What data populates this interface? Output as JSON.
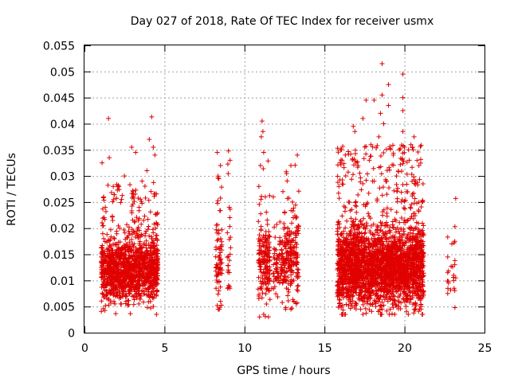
{
  "chart_data": {
    "type": "scatter",
    "title": "Day 027 of 2018, Rate Of TEC Index for receiver usmx",
    "xlabel": "GPS time / hours",
    "ylabel": "ROTI / TECUs",
    "xlim": [
      0,
      25
    ],
    "ylim": [
      0,
      0.055
    ],
    "xticks": [
      "0",
      "5",
      "10",
      "15",
      "20",
      "25"
    ],
    "yticks": [
      "0",
      "0.005",
      "0.01",
      "0.015",
      "0.02",
      "0.025",
      "0.03",
      "0.035",
      "0.04",
      "0.045",
      "0.05",
      "0.055"
    ],
    "grid": true,
    "marker": "+",
    "color": "#e00000",
    "series": [
      {
        "name": "ROTI",
        "points": [
          [
            1.5,
            0.041
          ],
          [
            1.1,
            0.0325
          ],
          [
            1.55,
            0.0335
          ],
          [
            2.95,
            0.0355
          ],
          [
            3.2,
            0.0345
          ],
          [
            4.2,
            0.0413
          ],
          [
            4.05,
            0.037
          ],
          [
            4.3,
            0.0355
          ],
          [
            2.5,
            0.03
          ],
          [
            1.8,
            0.028
          ],
          [
            1.2,
            0.026
          ],
          [
            1.3,
            0.024
          ],
          [
            3.6,
            0.029
          ],
          [
            4.4,
            0.034
          ],
          [
            3.9,
            0.031
          ],
          [
            8.3,
            0.0345
          ],
          [
            9.0,
            0.0348
          ],
          [
            8.5,
            0.032
          ],
          [
            9.1,
            0.033
          ],
          [
            8.4,
            0.0295
          ],
          [
            8.4,
            0.019
          ],
          [
            8.6,
            0.012
          ],
          [
            9.05,
            0.024
          ],
          [
            9.1,
            0.015
          ],
          [
            9.0,
            0.009
          ],
          [
            8.3,
            0.0052
          ],
          [
            8.5,
            0.006
          ],
          [
            8.35,
            0.0045
          ],
          [
            9.05,
            0.0115
          ],
          [
            11.1,
            0.0405
          ],
          [
            11.15,
            0.0385
          ],
          [
            11.05,
            0.0375
          ],
          [
            11.2,
            0.0345
          ],
          [
            11.0,
            0.032
          ],
          [
            10.9,
            0.028
          ],
          [
            11.3,
            0.026
          ],
          [
            11.5,
            0.003
          ],
          [
            11.2,
            0.0035
          ],
          [
            11.8,
            0.026
          ],
          [
            12.4,
            0.027
          ],
          [
            12.9,
            0.032
          ],
          [
            13.3,
            0.034
          ],
          [
            13.0,
            0.025
          ],
          [
            12.7,
            0.02
          ],
          [
            12.2,
            0.0175
          ],
          [
            13.2,
            0.013
          ],
          [
            12.9,
            0.0045
          ],
          [
            13.1,
            0.006
          ],
          [
            11.6,
            0.012
          ],
          [
            12.5,
            0.01
          ],
          [
            12.2,
            0.0095
          ],
          [
            11.7,
            0.0085
          ],
          [
            10.9,
            0.007
          ],
          [
            13.35,
            0.009
          ],
          [
            16.8,
            0.0395
          ],
          [
            16.9,
            0.0385
          ],
          [
            17.6,
            0.0445
          ],
          [
            18.1,
            0.0445
          ],
          [
            18.6,
            0.0455
          ],
          [
            18.6,
            0.0515
          ],
          [
            19.0,
            0.0475
          ],
          [
            19.0,
            0.0435
          ],
          [
            19.9,
            0.0495
          ],
          [
            19.9,
            0.045
          ],
          [
            19.9,
            0.0425
          ],
          [
            19.9,
            0.0385
          ],
          [
            17.4,
            0.041
          ],
          [
            18.5,
            0.042
          ],
          [
            18.7,
            0.04
          ],
          [
            18.4,
            0.0375
          ],
          [
            20.0,
            0.0355
          ],
          [
            20.5,
            0.0355
          ],
          [
            20.6,
            0.0375
          ],
          [
            16.0,
            0.035
          ],
          [
            16.1,
            0.033
          ],
          [
            15.9,
            0.028
          ],
          [
            16.3,
            0.034
          ],
          [
            17.1,
            0.032
          ],
          [
            17.8,
            0.033
          ],
          [
            19.3,
            0.034
          ],
          [
            20.3,
            0.033
          ],
          [
            20.9,
            0.032
          ],
          [
            21.1,
            0.025
          ],
          [
            20.7,
            0.029
          ],
          [
            16.5,
            0.025
          ],
          [
            17.4,
            0.0285
          ],
          [
            18.0,
            0.029
          ],
          [
            19.5,
            0.03
          ],
          [
            18.9,
            0.0265
          ],
          [
            16.2,
            0.012
          ],
          [
            16.6,
            0.015
          ],
          [
            17.2,
            0.01
          ],
          [
            17.8,
            0.013
          ],
          [
            18.3,
            0.016
          ],
          [
            18.8,
            0.011
          ],
          [
            19.2,
            0.014
          ],
          [
            19.7,
            0.01
          ],
          [
            20.2,
            0.009
          ],
          [
            20.6,
            0.012
          ],
          [
            21.0,
            0.008
          ],
          [
            16.4,
            0.007
          ],
          [
            17.0,
            0.0055
          ],
          [
            17.7,
            0.006
          ],
          [
            18.2,
            0.005
          ],
          [
            19.1,
            0.0045
          ],
          [
            19.6,
            0.006
          ],
          [
            20.4,
            0.0065
          ],
          [
            21.05,
            0.0065
          ],
          [
            18.5,
            0.0035
          ],
          [
            23.2,
            0.0257
          ],
          [
            23.15,
            0.0203
          ],
          [
            22.7,
            0.0183
          ],
          [
            23.1,
            0.0172
          ],
          [
            22.7,
            0.0145
          ],
          [
            23.15,
            0.0138
          ],
          [
            22.75,
            0.0118
          ],
          [
            23.2,
            0.0105
          ],
          [
            22.75,
            0.0095
          ],
          [
            23.1,
            0.0085
          ],
          [
            22.7,
            0.0075
          ],
          [
            23.15,
            0.0048
          ],
          [
            1.3,
            0.012
          ],
          [
            1.6,
            0.01
          ],
          [
            2.0,
            0.014
          ],
          [
            2.4,
            0.011
          ],
          [
            2.8,
            0.013
          ],
          [
            3.2,
            0.009
          ],
          [
            3.6,
            0.012
          ],
          [
            4.0,
            0.011
          ],
          [
            4.4,
            0.01
          ],
          [
            1.4,
            0.0065
          ],
          [
            1.9,
            0.0055
          ],
          [
            2.6,
            0.006
          ],
          [
            3.4,
            0.0055
          ],
          [
            4.3,
            0.005
          ],
          [
            4.5,
            0.0035
          ],
          [
            1.2,
            0.018
          ],
          [
            2.2,
            0.02
          ],
          [
            3.0,
            0.017
          ],
          [
            3.8,
            0.019
          ],
          [
            4.5,
            0.021
          ]
        ]
      }
    ]
  }
}
